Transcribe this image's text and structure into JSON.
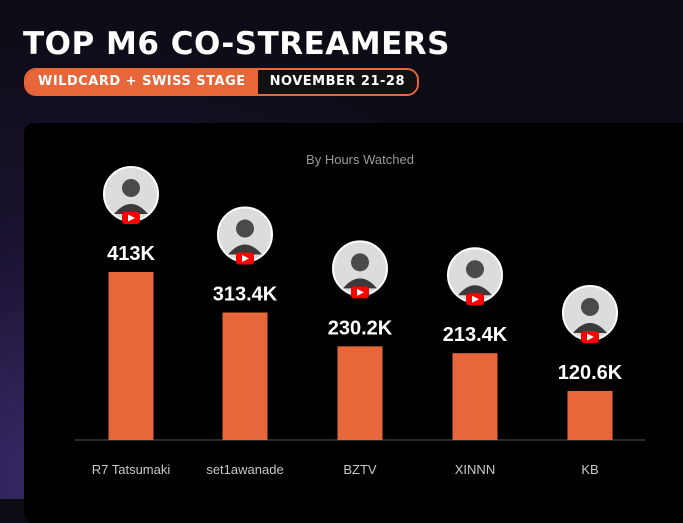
{
  "header": {
    "title": "TOP M6 CO-STREAMERS",
    "stage": "WILDCARD + SWISS STAGE",
    "dates": "NOVEMBER 21-28"
  },
  "colors": {
    "bar": "#e8673a",
    "accent": "#e8673a",
    "youtube": "#ff0000"
  },
  "chart_data": {
    "type": "bar",
    "title": "By Hours Watched",
    "categories": [
      "R7 Tatsumaki",
      "set1awanade",
      "BZTV",
      "XINNN",
      "KB"
    ],
    "values": [
      413000,
      313400,
      230200,
      213400,
      120600
    ],
    "value_labels": [
      "413K",
      "313.4K",
      "230.2K",
      "213.4K",
      "120.6K"
    ],
    "ylim": [
      0,
      500000
    ],
    "grid": false,
    "icons": [
      "avatar-icon",
      "youtube-icon"
    ]
  }
}
